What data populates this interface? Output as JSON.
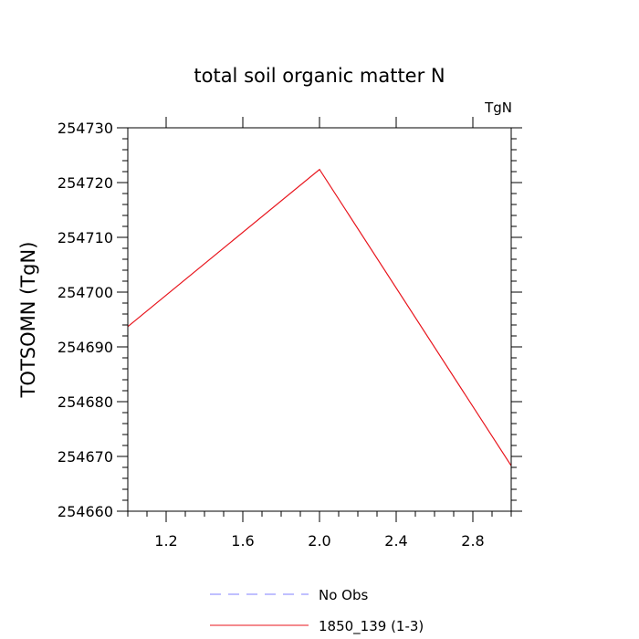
{
  "chart_data": {
    "type": "line",
    "title": "total soil organic matter N",
    "units": "TgN",
    "ylabel": "TOTSOMN  (TgN)",
    "xlabel": "",
    "xlim": [
      1.0,
      3.0
    ],
    "ylim": [
      254660,
      254730
    ],
    "x_ticks": [
      1.2,
      1.6,
      2.0,
      2.4,
      2.8
    ],
    "x_tick_labels": [
      "1.2",
      "1.6",
      "2.0",
      "2.4",
      "2.8"
    ],
    "y_ticks": [
      254660,
      254670,
      254680,
      254690,
      254700,
      254710,
      254720,
      254730
    ],
    "y_tick_labels": [
      "254660",
      "254670",
      "254680",
      "254690",
      "254700",
      "254710",
      "254720",
      "254730"
    ],
    "series": [
      {
        "name": "No Obs",
        "color": "#8080ff",
        "dash": "dashed",
        "x": [],
        "y": []
      },
      {
        "name": "1850_139 (1-3)",
        "color": "#e8141c",
        "dash": "solid",
        "x": [
          1.0,
          2.0,
          3.0
        ],
        "y": [
          254693.7,
          254722.4,
          254668.3
        ]
      }
    ],
    "legend": "bottom-center"
  }
}
